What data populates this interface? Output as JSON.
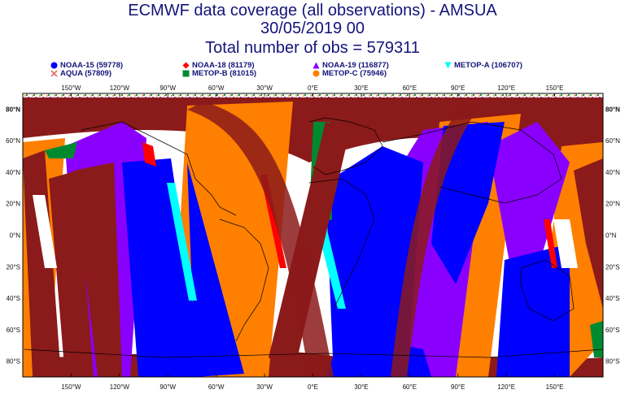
{
  "header": {
    "title": "ECMWF data coverage (all observations) - AMSUA",
    "date": "30/05/2019 00",
    "total": "Total number of obs = 579311"
  },
  "legend": [
    {
      "label": "NOAA-15 (59778)",
      "color": "#0000ff",
      "marker": "circle"
    },
    {
      "label": "AQUA (57809)",
      "color": "#e07070",
      "marker": "cross"
    },
    {
      "label": "NOAA-18 (81179)",
      "color": "#ff0000",
      "marker": "diamond"
    },
    {
      "label": "METOP-B (81015)",
      "color": "#008a30",
      "marker": "square"
    },
    {
      "label": "NOAA-19 (116877)",
      "color": "#8a00ff",
      "marker": "triangle"
    },
    {
      "label": "METOP-C (75946)",
      "color": "#ff7f00",
      "marker": "circle"
    },
    {
      "label": "METOP-A (106707)",
      "color": "#00ffff",
      "marker": "triangle-down"
    }
  ],
  "axes": {
    "lon_labels": [
      "150°W",
      "120°W",
      "90°W",
      "60°W",
      "30°W",
      "0°E",
      "30°E",
      "60°E",
      "90°E",
      "120°E",
      "150°E"
    ],
    "lat_labels": [
      "80°N",
      "60°N",
      "40°N",
      "20°N",
      "0°N",
      "20°S",
      "40°S",
      "60°S",
      "80°S"
    ]
  }
}
